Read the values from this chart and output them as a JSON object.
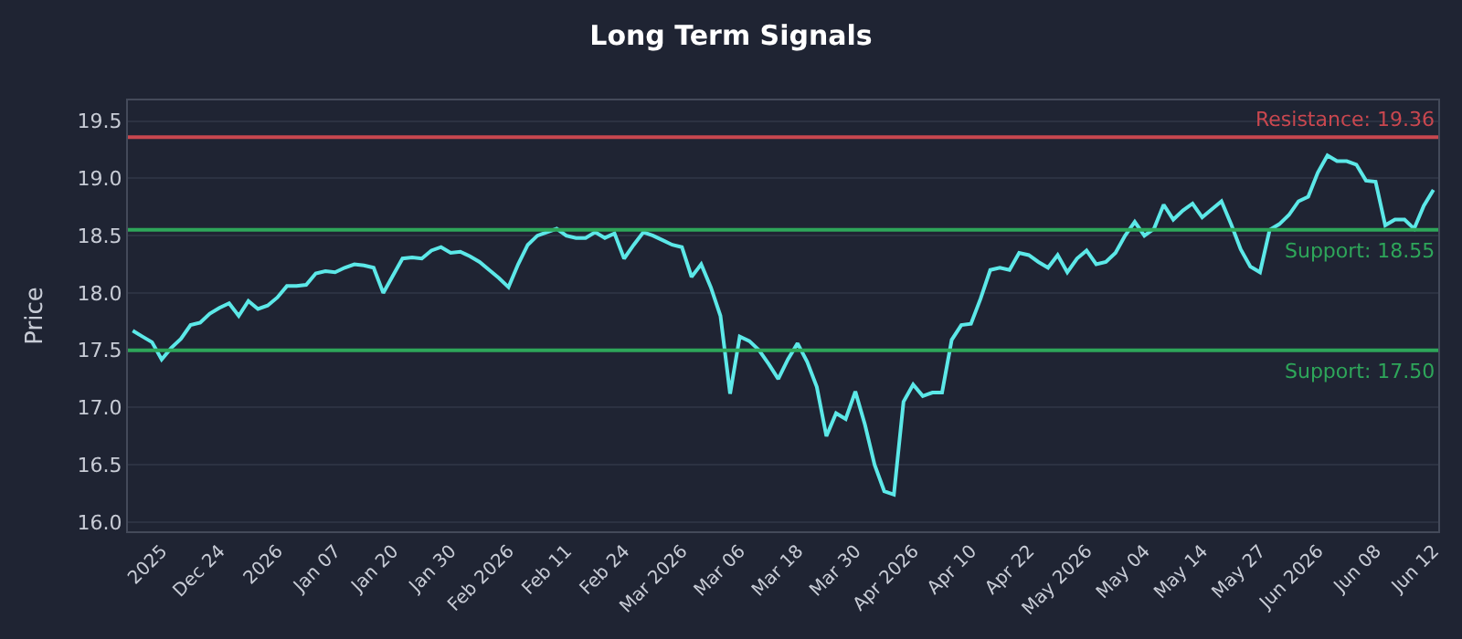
{
  "chart_data": {
    "type": "line",
    "title": "Long Term Signals",
    "ylabel": "Price",
    "categories": [
      null,
      null,
      null,
      "2025",
      null,
      null,
      null,
      null,
      null,
      "Dec 24",
      null,
      null,
      null,
      null,
      null,
      "2026",
      null,
      null,
      null,
      null,
      null,
      "Jan 07",
      null,
      null,
      null,
      null,
      null,
      "Jan 20",
      null,
      null,
      null,
      null,
      null,
      "Jan 30",
      null,
      null,
      null,
      null,
      null,
      "Feb 2026",
      null,
      null,
      null,
      null,
      null,
      "Feb 11",
      null,
      null,
      null,
      null,
      null,
      "Feb 24",
      null,
      null,
      null,
      null,
      null,
      "Mar 2026",
      null,
      null,
      null,
      null,
      null,
      "Mar 06",
      null,
      null,
      null,
      null,
      null,
      "Mar 18",
      null,
      null,
      null,
      null,
      null,
      "Mar 30",
      null,
      null,
      null,
      null,
      null,
      "Apr 2026",
      null,
      null,
      null,
      null,
      null,
      "Apr 10",
      null,
      null,
      null,
      null,
      null,
      "Apr 22",
      null,
      null,
      null,
      null,
      null,
      "May 2026",
      null,
      null,
      null,
      null,
      null,
      "May 04",
      null,
      null,
      null,
      null,
      null,
      "May 14",
      null,
      null,
      null,
      null,
      null,
      "May 27",
      null,
      null,
      null,
      null,
      null,
      "Jun 2026",
      null,
      null,
      null,
      null,
      null,
      "Jun 08",
      null,
      null,
      null,
      null,
      null,
      "Jun 12"
    ],
    "series": [
      {
        "color": "#5ce8e8",
        "values": [
          17.67,
          17.62,
          17.57,
          17.42,
          17.52,
          17.6,
          17.72,
          17.74,
          17.82,
          17.87,
          17.91,
          17.8,
          17.93,
          17.86,
          17.89,
          17.96,
          18.06,
          18.06,
          18.07,
          18.17,
          18.19,
          18.18,
          18.22,
          18.25,
          18.24,
          18.22,
          18.0,
          18.15,
          18.3,
          18.31,
          18.3,
          18.37,
          18.4,
          18.35,
          18.36,
          18.32,
          18.27,
          18.2,
          18.13,
          18.05,
          18.25,
          18.42,
          18.5,
          18.53,
          18.56,
          18.5,
          18.48,
          18.48,
          18.53,
          18.48,
          18.52,
          18.3,
          18.42,
          18.53,
          18.5,
          18.46,
          18.42,
          18.4,
          18.14,
          18.25,
          18.05,
          17.8,
          17.12,
          17.62,
          17.58,
          17.5,
          17.38,
          17.25,
          17.42,
          17.56,
          17.4,
          17.18,
          16.75,
          16.95,
          16.9,
          17.14,
          16.85,
          16.5,
          16.27,
          16.24,
          17.05,
          17.2,
          17.1,
          17.13,
          17.13,
          17.59,
          17.72,
          17.73,
          17.95,
          18.2,
          18.22,
          18.2,
          18.35,
          18.33,
          18.27,
          18.22,
          18.33,
          18.18,
          18.3,
          18.37,
          18.25,
          18.27,
          18.35,
          18.5,
          18.62,
          18.5,
          18.56,
          18.77,
          18.64,
          18.72,
          18.78,
          18.66,
          18.73,
          18.8,
          18.6,
          18.38,
          18.23,
          18.18,
          18.55,
          18.6,
          18.68,
          18.8,
          18.84,
          19.05,
          19.2,
          19.15,
          19.15,
          19.12,
          18.98,
          18.97,
          18.59,
          18.64,
          18.64,
          18.56,
          18.76,
          18.9
        ]
      }
    ],
    "ylim": [
      15.92,
      19.68
    ],
    "yticks": [
      {
        "value": 16,
        "label": "16.0"
      },
      {
        "value": 16.5,
        "label": "16.5"
      },
      {
        "value": 17,
        "label": "17.0"
      },
      {
        "value": 17.5,
        "label": "17.5"
      },
      {
        "value": 18,
        "label": "18.0"
      },
      {
        "value": 18.5,
        "label": "18.5"
      },
      {
        "value": 19,
        "label": "19.0"
      },
      {
        "value": 19.5,
        "label": "19.5"
      }
    ],
    "grid": "y",
    "marker": "none",
    "line_style": "solid",
    "ref_lines": [
      {
        "axis": "y",
        "value": 19.36,
        "label": "Resistance: 19.36",
        "color": "#c9474f"
      },
      {
        "axis": "y",
        "value": 18.55,
        "label": "Support: 18.55",
        "color": "#2ea65a"
      },
      {
        "axis": "y",
        "value": 17.5,
        "label": "Support: 17.50",
        "color": "#2ea65a"
      }
    ]
  }
}
